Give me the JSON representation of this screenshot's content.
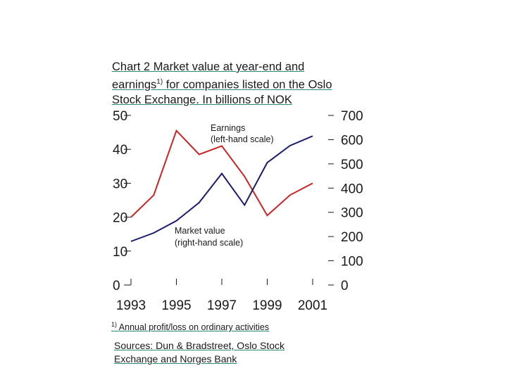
{
  "chart_data": {
    "type": "line",
    "title_parts": {
      "line1": "Chart 2 Market value at year-end and",
      "line2_pre": "earnings",
      "line2_sup": "1)",
      "line2_post": " for companies listed on the Oslo",
      "line3": "Stock Exchange. In billions of NOK"
    },
    "x_tick_labels": [
      "1993",
      "1995",
      "1997",
      "1999",
      "2001"
    ],
    "y_left_tick_labels": [
      "0",
      "10",
      "20",
      "30",
      "40",
      "50"
    ],
    "y_right_tick_labels": [
      "0",
      "100",
      "200",
      "300",
      "400",
      "500",
      "600",
      "700"
    ],
    "ylim_left": [
      0,
      50
    ],
    "ylim_right": [
      0,
      700
    ],
    "xlim": [
      1993,
      2001
    ],
    "x": [
      1993,
      1994,
      1995,
      1996,
      1997,
      1998,
      1999,
      2000,
      2001
    ],
    "series": [
      {
        "name": "Earnings (left-hand scale)",
        "axis": "left",
        "color": "#cc2222",
        "x": [
          1993,
          1994,
          1995,
          1996,
          1997,
          1998,
          1999,
          2000,
          2001
        ],
        "values": [
          20.0,
          26.5,
          45.5,
          38.5,
          41.0,
          32.0,
          20.5,
          26.5,
          30.0
        ]
      },
      {
        "name": "Market value (right-hand scale)",
        "axis": "right",
        "color": "#1a1a6e",
        "x": [
          1993,
          1994,
          1995,
          1996,
          1997,
          1998,
          1999,
          2000,
          2001
        ],
        "values": [
          180,
          215,
          265,
          340,
          460,
          330,
          505,
          575,
          615
        ]
      }
    ],
    "annotations": {
      "earnings_line1": "Earnings",
      "earnings_line2": "(left-hand scale)",
      "market_line1": "Market value",
      "market_line2": "(right-hand scale)"
    },
    "grid": false,
    "legend": "inline"
  },
  "footnote": {
    "sup": "1)",
    "text": " Annual profit/loss on ordinary activities"
  },
  "sources": {
    "line1": "Sources: Dun & Bradstreet, Oslo Stock",
    "line2": "Exchange and Norges Bank"
  }
}
